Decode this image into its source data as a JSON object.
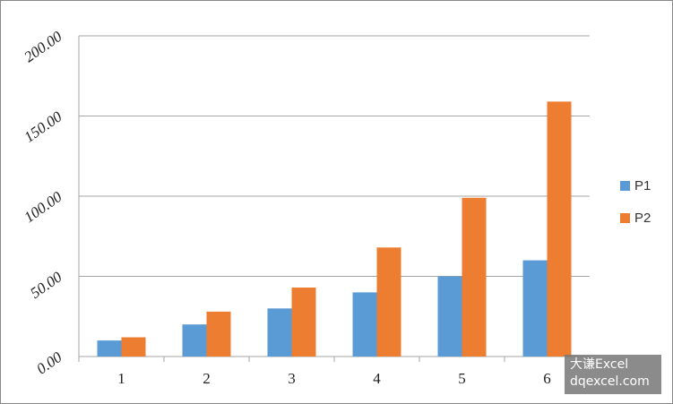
{
  "chart_data": {
    "type": "bar",
    "categories": [
      "1",
      "2",
      "3",
      "4",
      "5",
      "6"
    ],
    "series": [
      {
        "name": "P1",
        "color": "#5b9bd5",
        "values": [
          10,
          20,
          30,
          40,
          50,
          60
        ]
      },
      {
        "name": "P2",
        "color": "#ed7d31",
        "values": [
          12,
          28,
          43,
          68,
          99,
          159
        ]
      }
    ],
    "ylim": [
      0,
      200
    ],
    "yticks": [
      {
        "value": 0,
        "label": "0.00"
      },
      {
        "value": 50,
        "label": "50.00"
      },
      {
        "value": 100,
        "label": "100.00"
      },
      {
        "value": 150,
        "label": "150.00"
      },
      {
        "value": 200,
        "label": "200.00"
      }
    ],
    "grid": true,
    "legend": "right"
  },
  "watermark": {
    "line1": "大谦Excel",
    "line2": "dqexcel.com"
  }
}
